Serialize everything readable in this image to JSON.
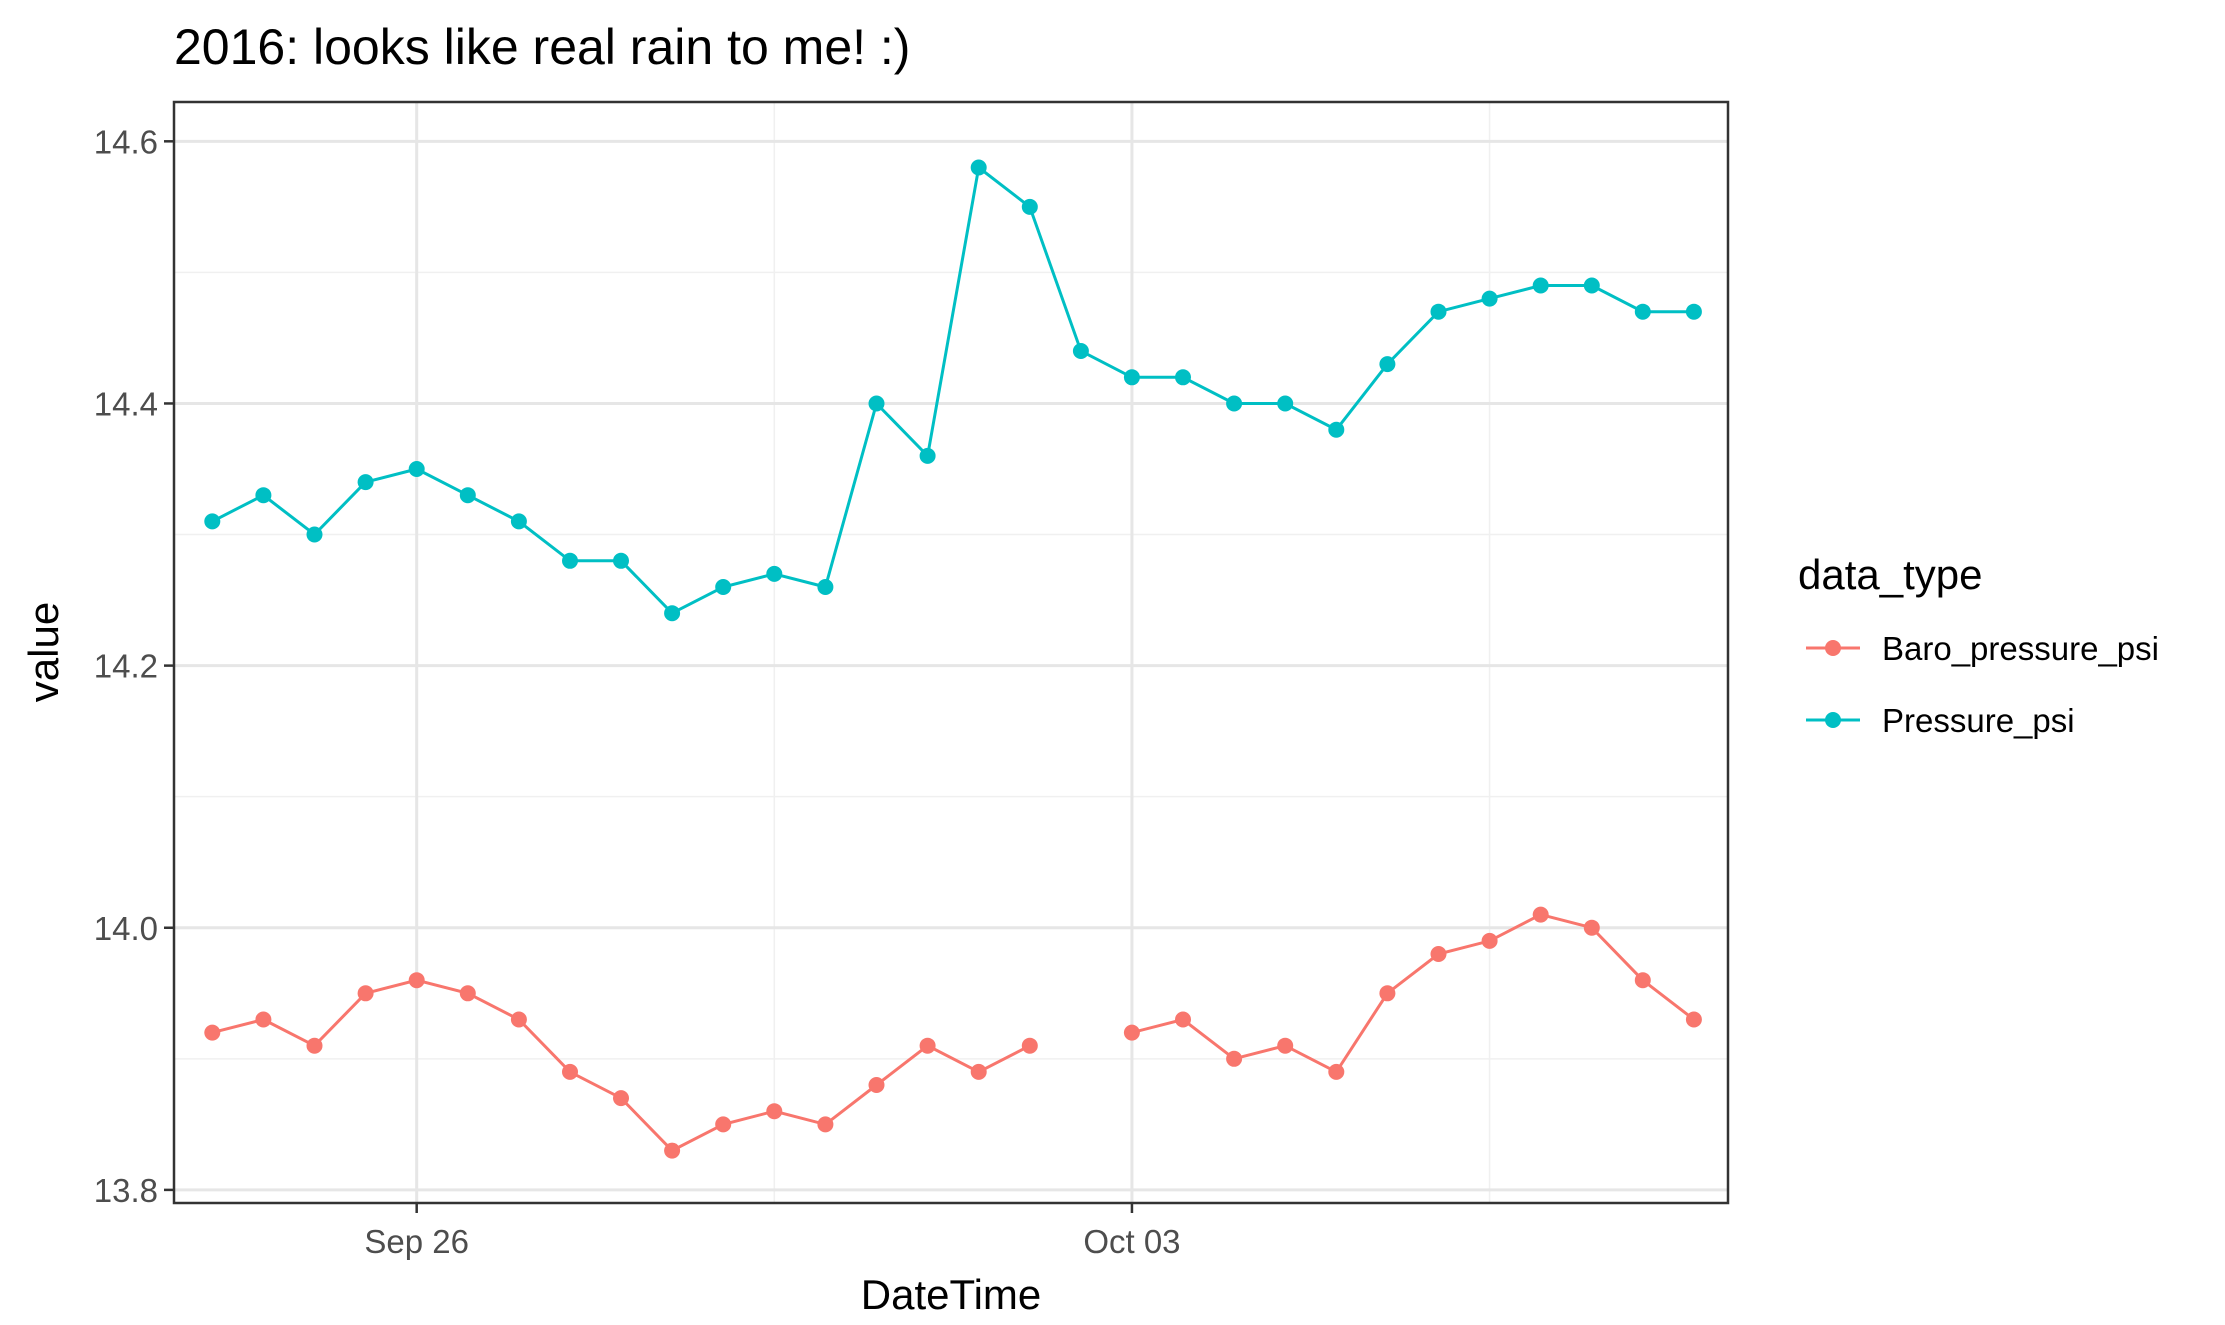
{
  "chart_data": {
    "type": "line",
    "title": "2016: looks like real rain to me! :)",
    "xlabel": "DateTime",
    "ylabel": "value",
    "x_ticks": [
      "Sep 26",
      "Oct 03"
    ],
    "y_ticks": [
      "13.8",
      "14.0",
      "14.2",
      "14.4",
      "14.6"
    ],
    "xlim": [
      "2016-09-23T15:00",
      "2016-10-08T20:00"
    ],
    "ylim": [
      13.79,
      14.63
    ],
    "grid": true,
    "legend_position": "right",
    "legend_title": "data_type",
    "x": [
      "2016-09-24T00:00",
      "2016-09-24T12:00",
      "2016-09-25T00:00",
      "2016-09-25T12:00",
      "2016-09-26T00:00",
      "2016-09-26T12:00",
      "2016-09-27T00:00",
      "2016-09-27T12:00",
      "2016-09-28T00:00",
      "2016-09-28T12:00",
      "2016-09-29T00:00",
      "2016-09-29T12:00",
      "2016-09-30T00:00",
      "2016-09-30T12:00",
      "2016-10-01T00:00",
      "2016-10-01T12:00",
      "2016-10-02T00:00",
      "2016-10-02T12:00",
      "2016-10-03T00:00",
      "2016-10-03T12:00",
      "2016-10-04T00:00",
      "2016-10-04T12:00",
      "2016-10-05T00:00",
      "2016-10-05T12:00",
      "2016-10-06T00:00",
      "2016-10-06T12:00",
      "2016-10-07T00:00",
      "2016-10-07T12:00",
      "2016-10-08T00:00",
      "2016-10-08T12:00"
    ],
    "series": [
      {
        "name": "Baro_pressure_psi",
        "color": "#F8766D",
        "values": [
          13.92,
          13.93,
          13.91,
          13.95,
          13.96,
          13.95,
          13.93,
          13.89,
          13.87,
          13.83,
          13.85,
          13.86,
          13.85,
          13.88,
          13.91,
          13.89,
          13.91,
          null,
          13.92,
          13.93,
          13.9,
          13.91,
          13.89,
          13.95,
          13.98,
          13.99,
          14.01,
          14.0,
          13.96,
          13.93
        ]
      },
      {
        "name": "Pressure_psi",
        "color": "#00BFC4",
        "values": [
          14.31,
          14.33,
          14.3,
          14.34,
          14.35,
          14.33,
          14.31,
          14.28,
          14.28,
          14.24,
          14.26,
          14.27,
          14.26,
          14.4,
          14.36,
          14.58,
          14.55,
          14.44,
          14.42,
          14.42,
          14.4,
          14.4,
          14.38,
          14.43,
          14.47,
          14.48,
          14.49,
          14.49,
          14.47,
          14.47
        ]
      }
    ]
  }
}
